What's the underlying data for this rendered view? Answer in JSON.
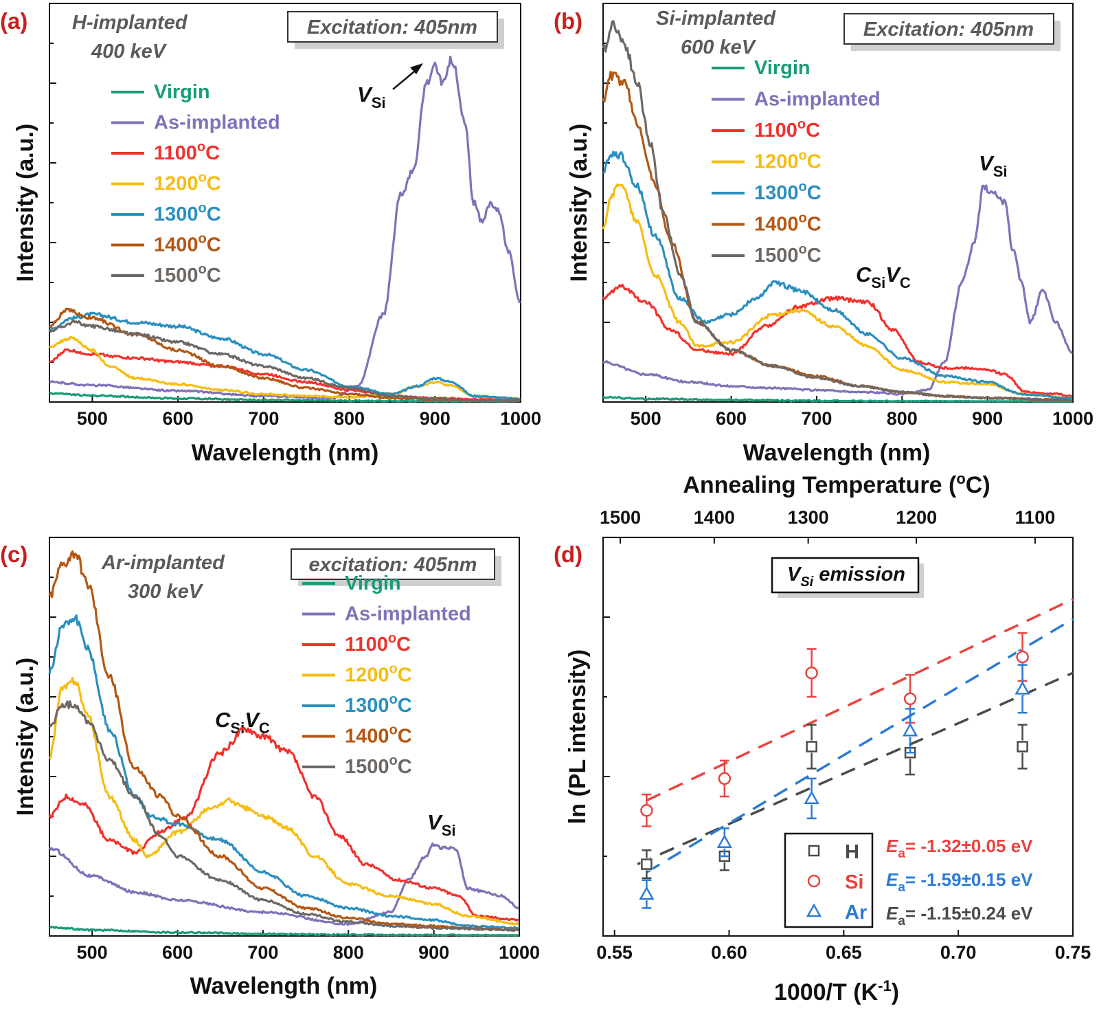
{
  "colors": {
    "Virgin": "#1a9b78",
    "As-implanted": "#7f72b8",
    "1100": "#f0322d",
    "1200": "#f6bc12",
    "1300": "#2a8fbf",
    "1400": "#b45712",
    "1500": "#6e6865",
    "H": "#4a4a4a",
    "Si": "#e8443f",
    "Ar": "#2a7bd6",
    "tag": "#c8201e"
  },
  "legend_labels": [
    "Virgin",
    "As-implanted",
    "1100",
    "1200",
    "1300",
    "1400",
    "1500"
  ],
  "deg": "°C",
  "panels": {
    "a": {
      "tag": "(a)",
      "sample_line1": "H-implanted",
      "sample_line2": "400 keV",
      "excitation": "Excitation: 405nm",
      "xlabel": "Wavelength (nm)",
      "ylabel": "Intensity (a.u.)",
      "annotations": [
        {
          "base": "V",
          "sub": "Si"
        }
      ]
    },
    "b": {
      "tag": "(b)",
      "sample_line1": "Si-implanted",
      "sample_line2": "600 keV",
      "excitation": "Excitation: 405nm",
      "xlabel": "Wavelength (nm)",
      "ylabel": "Intensity (a.u.)",
      "annotations": [
        {
          "base": "V",
          "sub": "Si"
        },
        {
          "base": "C",
          "sub": "Si",
          "base2": "V",
          "sub2": "C"
        }
      ]
    },
    "c": {
      "tag": "(c)",
      "sample_line1": "Ar-implanted",
      "sample_line2": "300 keV",
      "excitation": "excitation: 405nm",
      "xlabel": "Wavelength (nm)",
      "ylabel": "Intensity (a.u.)",
      "annotations": [
        {
          "base": "C",
          "sub": "Si",
          "base2": "V",
          "sub2": "C"
        },
        {
          "base": "V",
          "sub": "Si"
        }
      ]
    },
    "d": {
      "tag": "(d)",
      "box_base": "V",
      "box_sub": "Si",
      "box_rest": " emission",
      "xlabel": "1000/T (K",
      "xlabel_sup": "-1",
      "xlabel_end": ")",
      "ylabel": "ln (PL intensity)",
      "top_label": "Annealing Temperature (",
      "top_label_sup": "o",
      "top_label_end": "C)",
      "fit_prefix": "E",
      "fit_sub": "a",
      "fit_texts": [
        "= -1.32±0.05 eV",
        "= -1.59±0.15 eV",
        "= -1.15±0.24 eV"
      ],
      "legend": [
        "H",
        "Si",
        "Ar"
      ]
    }
  },
  "chart_data": [
    {
      "panel": "a",
      "type": "line",
      "title": "",
      "xlabel": "Wavelength (nm)",
      "ylabel": "Intensity (a.u.)",
      "xlim": [
        450,
        1000
      ],
      "ylim": [
        0,
        100
      ],
      "xticks": [
        500,
        600,
        700,
        800,
        900,
        1000
      ],
      "series": [
        {
          "name": "Virgin",
          "x": [
            450,
            500,
            600,
            700,
            800,
            900,
            1000
          ],
          "y": [
            2.2,
            1.6,
            0.9,
            0.5,
            0.3,
            0.2,
            0.1
          ]
        },
        {
          "name": "As-implanted",
          "x": [
            450,
            500,
            600,
            700,
            780,
            810,
            840,
            860,
            875,
            890,
            900,
            910,
            920,
            935,
            945,
            955,
            965,
            975,
            985,
            1000
          ],
          "y": [
            5,
            4.2,
            2.8,
            1.5,
            1,
            4,
            22,
            52,
            58,
            80,
            84,
            80,
            86,
            70,
            50,
            45,
            50,
            48,
            38,
            25
          ]
        },
        {
          "name": "1100",
          "x": [
            450,
            470,
            500,
            550,
            600,
            650,
            700,
            750,
            800,
            850,
            900,
            950,
            1000
          ],
          "y": [
            10,
            13,
            12,
            11,
            10,
            9,
            7,
            5,
            3,
            1.5,
            1,
            0.7,
            0.5
          ]
        },
        {
          "name": "1200",
          "x": [
            450,
            475,
            500,
            520,
            550,
            600,
            650,
            700,
            750,
            800,
            850,
            880,
            900,
            920,
            945,
            1000
          ],
          "y": [
            14,
            16,
            13,
            9,
            6,
            4.5,
            3,
            2,
            1.5,
            1.2,
            2,
            4,
            5,
            4,
            1.5,
            0.8
          ]
        },
        {
          "name": "1300",
          "x": [
            450,
            475,
            500,
            550,
            600,
            650,
            700,
            750,
            800,
            850,
            880,
            900,
            920,
            945,
            1000
          ],
          "y": [
            18,
            21,
            22,
            20,
            19,
            16,
            12,
            8,
            4,
            2,
            4,
            6,
            5,
            1.5,
            0.8
          ]
        },
        {
          "name": "1400",
          "x": [
            450,
            470,
            500,
            550,
            600,
            650,
            700,
            750,
            800,
            850,
            900,
            950,
            1000
          ],
          "y": [
            19,
            23,
            21,
            17,
            13,
            9,
            6,
            3.5,
            2,
            1,
            0.6,
            0.4,
            0.3
          ]
        },
        {
          "name": "1500",
          "x": [
            450,
            480,
            500,
            550,
            600,
            650,
            700,
            750,
            800,
            850,
            900,
            950,
            1000
          ],
          "y": [
            18,
            20,
            19,
            17,
            15,
            12,
            9,
            6,
            3.5,
            1.5,
            0.7,
            0.4,
            0.3
          ]
        }
      ]
    },
    {
      "panel": "b",
      "type": "line",
      "title": "",
      "xlabel": "Wavelength (nm)",
      "ylabel": "Intensity (a.u.)",
      "xlim": [
        450,
        1000
      ],
      "ylim": [
        0,
        100
      ],
      "xticks": [
        500,
        600,
        700,
        800,
        900,
        1000
      ],
      "series": [
        {
          "name": "Virgin",
          "x": [
            450,
            500,
            600,
            700,
            800,
            900,
            1000
          ],
          "y": [
            1.2,
            0.8,
            0.5,
            0.3,
            0.2,
            0.1,
            0.1
          ]
        },
        {
          "name": "As-implanted",
          "x": [
            450,
            500,
            550,
            600,
            650,
            700,
            750,
            800,
            830,
            850,
            870,
            885,
            895,
            910,
            920,
            930,
            940,
            950,
            965,
            980,
            1000
          ],
          "y": [
            10,
            7,
            5,
            4,
            3.5,
            3,
            2.5,
            2,
            3,
            10,
            30,
            40,
            54,
            52,
            50,
            38,
            30,
            20,
            28,
            20,
            12
          ]
        },
        {
          "name": "1100",
          "x": [
            450,
            470,
            500,
            530,
            560,
            600,
            640,
            680,
            720,
            760,
            790,
            820,
            850,
            880,
            900,
            920,
            945,
            980,
            1000
          ],
          "y": [
            26,
            29,
            25,
            18,
            13,
            12,
            19,
            24,
            26,
            25,
            18,
            10,
            8.5,
            8.5,
            8,
            7,
            2.5,
            2,
            1.5
          ]
        },
        {
          "name": "1200",
          "x": [
            450,
            460,
            470,
            490,
            510,
            540,
            560,
            600,
            650,
            680,
            720,
            760,
            800,
            850,
            900,
            940,
            1000
          ],
          "y": [
            44,
            52,
            55,
            45,
            32,
            20,
            14,
            15,
            22,
            23,
            19,
            14,
            8,
            5,
            4.5,
            2,
            1
          ]
        },
        {
          "name": "1300",
          "x": [
            450,
            460,
            470,
            490,
            510,
            540,
            570,
            600,
            630,
            650,
            680,
            720,
            760,
            800,
            850,
            900,
            940,
            1000
          ],
          "y": [
            58,
            62,
            62,
            54,
            42,
            26,
            20,
            22,
            26,
            30,
            28,
            23,
            17,
            11,
            6.5,
            5,
            2,
            1
          ]
        },
        {
          "name": "1400",
          "x": [
            450,
            460,
            475,
            490,
            510,
            530,
            560,
            600,
            650,
            700,
            750,
            800,
            850,
            900,
            1000
          ],
          "y": [
            76,
            82,
            80,
            70,
            55,
            40,
            20,
            13,
            9,
            6.5,
            4,
            2.5,
            1.5,
            1,
            0.5
          ]
        },
        {
          "name": "1500",
          "x": [
            450,
            462,
            475,
            490,
            505,
            520,
            540,
            560,
            600,
            650,
            700,
            750,
            800,
            850,
            900,
            1000
          ],
          "y": [
            88,
            95,
            90,
            80,
            65,
            48,
            32,
            20,
            13,
            9,
            6,
            4,
            2.5,
            1.5,
            1,
            0.5
          ]
        }
      ]
    },
    {
      "panel": "c",
      "type": "line",
      "title": "",
      "xlabel": "Wavelength (nm)",
      "ylabel": "Intensity (a.u.)",
      "xlim": [
        450,
        1000
      ],
      "ylim": [
        0,
        100
      ],
      "xticks": [
        500,
        600,
        700,
        800,
        900,
        1000
      ],
      "series": [
        {
          "name": "Virgin",
          "x": [
            450,
            500,
            600,
            700,
            800,
            900,
            1000
          ],
          "y": [
            2.2,
            1.5,
            0.9,
            0.5,
            0.3,
            0.2,
            0.1
          ]
        },
        {
          "name": "As-implanted",
          "x": [
            450,
            500,
            550,
            600,
            700,
            800,
            850,
            870,
            890,
            900,
            910,
            925,
            940,
            960,
            980,
            1000
          ],
          "y": [
            22,
            15,
            11,
            9,
            6,
            3,
            6,
            14,
            20,
            23,
            22,
            22,
            12,
            11,
            10,
            7
          ]
        },
        {
          "name": "1100",
          "x": [
            450,
            470,
            490,
            520,
            550,
            580,
            610,
            650,
            680,
            700,
            730,
            760,
            790,
            820,
            860,
            900,
            930,
            950,
            1000
          ],
          "y": [
            30,
            35,
            33,
            24,
            21,
            26,
            30,
            46,
            52,
            50,
            46,
            35,
            25,
            18,
            14,
            12,
            10,
            5,
            4
          ]
        },
        {
          "name": "1200",
          "x": [
            450,
            465,
            480,
            495,
            520,
            550,
            565,
            600,
            640,
            660,
            680,
            700,
            730,
            760,
            800,
            850,
            900,
            940,
            1000
          ],
          "y": [
            45,
            62,
            64,
            55,
            35,
            24,
            20,
            26,
            32,
            34,
            32,
            30,
            27,
            20,
            13,
            10,
            8,
            5,
            3
          ]
        },
        {
          "name": "1300",
          "x": [
            450,
            465,
            480,
            495,
            520,
            550,
            570,
            600,
            650,
            700,
            750,
            800,
            850,
            900,
            940,
            1000
          ],
          "y": [
            66,
            78,
            80,
            72,
            52,
            35,
            30,
            28,
            24,
            16,
            10,
            7,
            5,
            4,
            2.5,
            2
          ]
        },
        {
          "name": "1400",
          "x": [
            450,
            465,
            480,
            495,
            520,
            550,
            580,
            600,
            650,
            700,
            750,
            800,
            850,
            900,
            940,
            1000
          ],
          "y": [
            85,
            93,
            96,
            88,
            65,
            42,
            35,
            30,
            20,
            12,
            7,
            4.5,
            3,
            2.5,
            2,
            1.5
          ]
        },
        {
          "name": "1500",
          "x": [
            450,
            465,
            480,
            495,
            520,
            550,
            580,
            600,
            650,
            700,
            750,
            800,
            850,
            900,
            1000
          ],
          "y": [
            52,
            58,
            58,
            54,
            44,
            35,
            25,
            20,
            14,
            9,
            5.5,
            3.5,
            2.5,
            2,
            1.5
          ]
        }
      ]
    },
    {
      "panel": "d",
      "type": "scatter",
      "title": "",
      "xlabel": "1000/T (K-1)",
      "ylabel": "ln (PL intensity)",
      "xlim": [
        0.545,
        0.75
      ],
      "ylim": [
        0,
        10
      ],
      "xticks": [
        0.55,
        0.6,
        0.65,
        0.7,
        0.75
      ],
      "xtick_labels": [
        "0.55",
        "0.60",
        "0.65",
        "0.70",
        "0.75"
      ],
      "top_axis": {
        "label": "Annealing Temperature (oC)",
        "ticks": [
          1500,
          1400,
          1300,
          1200,
          1100
        ],
        "tick_x": [
          0.5525,
          0.5935,
          0.6345,
          0.6817,
          0.7335
        ]
      },
      "series": [
        {
          "name": "H",
          "marker": "square",
          "x": [
            0.564,
            0.598,
            0.636,
            0.679,
            0.728
          ],
          "y": [
            1.8,
            2.0,
            4.75,
            4.6,
            4.75
          ],
          "err": [
            0.35,
            0.35,
            0.55,
            0.55,
            0.55
          ],
          "fit": {
            "Ea": "-1.15±0.24 eV",
            "x0": 0.56,
            "y0": 1.8,
            "x1": 0.75,
            "y1": 6.6
          }
        },
        {
          "name": "Si",
          "marker": "circle",
          "x": [
            0.564,
            0.598,
            0.636,
            0.679,
            0.728
          ],
          "y": [
            3.15,
            3.95,
            6.6,
            5.95,
            7.0
          ],
          "err": [
            0.4,
            0.45,
            0.6,
            0.6,
            0.6
          ],
          "fit": {
            "Ea": "-1.32±0.05 eV",
            "x0": 0.564,
            "y0": 3.4,
            "x1": 0.75,
            "y1": 8.45
          }
        },
        {
          "name": "Ar",
          "marker": "triangle",
          "x": [
            0.564,
            0.598,
            0.636,
            0.679,
            0.728
          ],
          "y": [
            1.05,
            2.35,
            3.45,
            5.15,
            6.2
          ],
          "err": [
            0.35,
            0.35,
            0.5,
            0.55,
            0.6
          ],
          "fit": {
            "Ea": "-1.59±0.15 eV",
            "x0": 0.564,
            "y0": 1.6,
            "x1": 0.75,
            "y1": 7.95
          }
        }
      ]
    }
  ]
}
